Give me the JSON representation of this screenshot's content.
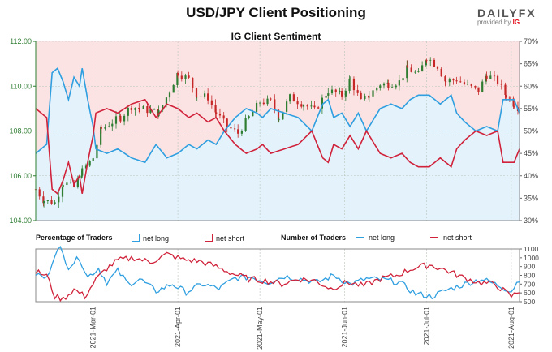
{
  "header": {
    "title": "USD/JPY Client Positioning",
    "subtitle": "IG Client Sentiment",
    "logo_main": "DAILY",
    "logo_fx": "FX",
    "logo_sub": "provided by",
    "logo_ig": "IG"
  },
  "legend": {
    "pct_title": "Percentage of Traders",
    "pct_long": "net long",
    "pct_short": "net short",
    "num_title": "Number of Traders",
    "num_long": "net long",
    "num_short": "net short"
  },
  "colors": {
    "long": "#2f9fe0",
    "short": "#d0223a",
    "long_fill": "#e4f2fc",
    "short_fill": "#fce3e3",
    "axis_green": "#2e7d32",
    "candle_up": "#2e7d32",
    "candle_down": "#c62828"
  },
  "chart_data": [
    {
      "type": "candlestick",
      "title": "IG Client Sentiment",
      "x_range": [
        "2021-02-08",
        "2021-08-04"
      ],
      "x_ticks": [
        "2021-Mar-01",
        "2021-Apr-01",
        "2021-May-01",
        "2021-Jun-01",
        "2021-Jul-01",
        "2021-Aug-01"
      ],
      "y_left": {
        "ticks": [
          "104.00",
          "106.00",
          "108.00",
          "110.00",
          "112.00"
        ],
        "range": [
          104,
          112
        ]
      },
      "y_right": {
        "ticks": [
          "30%",
          "35%",
          "40%",
          "45%",
          "50%",
          "55%",
          "60%",
          "65%",
          "70%"
        ],
        "range": [
          30,
          70
        ]
      },
      "reference_line_pct": 50,
      "price_close_anchors": [
        [
          "2021-02-08",
          105.4
        ],
        [
          "2021-02-11",
          104.9
        ],
        [
          "2021-02-15",
          104.8
        ],
        [
          "2021-02-18",
          105.7
        ],
        [
          "2021-02-22",
          105.5
        ],
        [
          "2021-02-25",
          106.2
        ],
        [
          "2021-03-01",
          106.8
        ],
        [
          "2021-03-04",
          108.1
        ],
        [
          "2021-03-08",
          108.4
        ],
        [
          "2021-03-11",
          108.6
        ],
        [
          "2021-03-15",
          109.1
        ],
        [
          "2021-03-18",
          109.0
        ],
        [
          "2021-03-22",
          108.9
        ],
        [
          "2021-03-25",
          108.8
        ],
        [
          "2021-03-29",
          109.8
        ],
        [
          "2021-04-01",
          110.6
        ],
        [
          "2021-04-05",
          110.3
        ],
        [
          "2021-04-08",
          109.6
        ],
        [
          "2021-04-12",
          109.5
        ],
        [
          "2021-04-15",
          108.8
        ],
        [
          "2021-04-19",
          108.2
        ],
        [
          "2021-04-23",
          107.9
        ],
        [
          "2021-04-27",
          108.6
        ],
        [
          "2021-05-01",
          109.3
        ],
        [
          "2021-05-05",
          109.3
        ],
        [
          "2021-05-08",
          108.6
        ],
        [
          "2021-05-12",
          109.5
        ],
        [
          "2021-05-17",
          109.2
        ],
        [
          "2021-05-21",
          108.9
        ],
        [
          "2021-05-26",
          109.8
        ],
        [
          "2021-05-31",
          109.6
        ],
        [
          "2021-06-03",
          110.3
        ],
        [
          "2021-06-07",
          109.3
        ],
        [
          "2021-06-10",
          109.6
        ],
        [
          "2021-06-14",
          110.1
        ],
        [
          "2021-06-17",
          110.1
        ],
        [
          "2021-06-21",
          110.2
        ],
        [
          "2021-06-24",
          110.8
        ],
        [
          "2021-06-28",
          110.5
        ],
        [
          "2021-07-01",
          111.3
        ],
        [
          "2021-07-05",
          110.9
        ],
        [
          "2021-07-08",
          110.2
        ],
        [
          "2021-07-12",
          110.3
        ],
        [
          "2021-07-16",
          110.0
        ],
        [
          "2021-07-20",
          109.8
        ],
        [
          "2021-07-23",
          110.5
        ],
        [
          "2021-07-27",
          110.2
        ],
        [
          "2021-07-30",
          109.6
        ],
        [
          "2021-08-02",
          109.2
        ],
        [
          "2021-08-04",
          109.0
        ]
      ],
      "series": [
        {
          "name": "net long",
          "unit": "%",
          "anchors": [
            [
              "2021-02-08",
              45
            ],
            [
              "2021-02-12",
              47
            ],
            [
              "2021-02-14",
              63
            ],
            [
              "2021-02-16",
              64
            ],
            [
              "2021-02-18",
              61
            ],
            [
              "2021-02-20",
              57
            ],
            [
              "2021-02-22",
              62
            ],
            [
              "2021-02-24",
              60
            ],
            [
              "2021-02-25",
              64
            ],
            [
              "2021-02-27",
              57
            ],
            [
              "2021-03-01",
              51
            ],
            [
              "2021-03-02",
              46
            ],
            [
              "2021-03-06",
              45
            ],
            [
              "2021-03-10",
              46
            ],
            [
              "2021-03-15",
              44
            ],
            [
              "2021-03-20",
              43
            ],
            [
              "2021-03-24",
              47
            ],
            [
              "2021-03-28",
              44
            ],
            [
              "2021-04-01",
              45
            ],
            [
              "2021-04-05",
              47
            ],
            [
              "2021-04-08",
              46
            ],
            [
              "2021-04-12",
              48
            ],
            [
              "2021-04-15",
              47
            ],
            [
              "2021-04-18",
              50
            ],
            [
              "2021-04-22",
              53
            ],
            [
              "2021-04-26",
              55
            ],
            [
              "2021-04-30",
              54
            ],
            [
              "2021-05-02",
              53
            ],
            [
              "2021-05-05",
              55
            ],
            [
              "2021-05-10",
              54
            ],
            [
              "2021-05-15",
              53
            ],
            [
              "2021-05-20",
              50
            ],
            [
              "2021-05-24",
              56
            ],
            [
              "2021-05-26",
              57
            ],
            [
              "2021-05-28",
              53
            ],
            [
              "2021-05-31",
              54
            ],
            [
              "2021-06-03",
              51
            ],
            [
              "2021-06-06",
              54
            ],
            [
              "2021-06-09",
              50
            ],
            [
              "2021-06-14",
              55
            ],
            [
              "2021-06-18",
              56
            ],
            [
              "2021-06-22",
              55
            ],
            [
              "2021-06-25",
              57
            ],
            [
              "2021-06-28",
              58
            ],
            [
              "2021-07-02",
              58
            ],
            [
              "2021-07-06",
              56
            ],
            [
              "2021-07-10",
              58
            ],
            [
              "2021-07-12",
              54
            ],
            [
              "2021-07-15",
              52
            ],
            [
              "2021-07-19",
              50
            ],
            [
              "2021-07-23",
              51
            ],
            [
              "2021-07-27",
              50
            ],
            [
              "2021-07-29",
              57
            ],
            [
              "2021-08-02",
              57
            ],
            [
              "2021-08-04",
              54
            ]
          ]
        },
        {
          "name": "net short",
          "unit": "%",
          "anchors": [
            [
              "2021-02-08",
              55
            ],
            [
              "2021-02-12",
              53
            ],
            [
              "2021-02-14",
              37
            ],
            [
              "2021-02-16",
              36
            ],
            [
              "2021-02-18",
              39
            ],
            [
              "2021-02-20",
              43
            ],
            [
              "2021-02-22",
              38
            ],
            [
              "2021-02-24",
              40
            ],
            [
              "2021-02-25",
              36
            ],
            [
              "2021-02-27",
              43
            ],
            [
              "2021-03-01",
              49
            ],
            [
              "2021-03-02",
              54
            ],
            [
              "2021-03-06",
              55
            ],
            [
              "2021-03-10",
              54
            ],
            [
              "2021-03-15",
              56
            ],
            [
              "2021-03-20",
              57
            ],
            [
              "2021-03-24",
              53
            ],
            [
              "2021-03-28",
              56
            ],
            [
              "2021-04-01",
              55
            ],
            [
              "2021-04-05",
              53
            ],
            [
              "2021-04-08",
              54
            ],
            [
              "2021-04-12",
              52
            ],
            [
              "2021-04-15",
              53
            ],
            [
              "2021-04-18",
              50
            ],
            [
              "2021-04-22",
              47
            ],
            [
              "2021-04-26",
              45
            ],
            [
              "2021-04-30",
              46
            ],
            [
              "2021-05-02",
              47
            ],
            [
              "2021-05-05",
              45
            ],
            [
              "2021-05-10",
              46
            ],
            [
              "2021-05-15",
              47
            ],
            [
              "2021-05-20",
              50
            ],
            [
              "2021-05-24",
              44
            ],
            [
              "2021-05-26",
              43
            ],
            [
              "2021-05-28",
              47
            ],
            [
              "2021-05-31",
              46
            ],
            [
              "2021-06-03",
              49
            ],
            [
              "2021-06-06",
              46
            ],
            [
              "2021-06-09",
              50
            ],
            [
              "2021-06-14",
              45
            ],
            [
              "2021-06-18",
              44
            ],
            [
              "2021-06-22",
              45
            ],
            [
              "2021-06-25",
              43
            ],
            [
              "2021-06-28",
              42
            ],
            [
              "2021-07-02",
              42
            ],
            [
              "2021-07-06",
              44
            ],
            [
              "2021-07-10",
              42
            ],
            [
              "2021-07-12",
              46
            ],
            [
              "2021-07-15",
              48
            ],
            [
              "2021-07-19",
              50
            ],
            [
              "2021-07-23",
              49
            ],
            [
              "2021-07-27",
              50
            ],
            [
              "2021-07-29",
              43
            ],
            [
              "2021-08-02",
              43
            ],
            [
              "2021-08-04",
              46
            ]
          ]
        }
      ]
    },
    {
      "type": "line",
      "title": "Number of Traders",
      "x_range": [
        "2021-02-08",
        "2021-08-04"
      ],
      "y_right": {
        "ticks": [
          "500",
          "600",
          "700",
          "800",
          "900",
          "1000",
          "1100"
        ],
        "range": [
          500,
          1100
        ]
      },
      "series": [
        {
          "name": "net long",
          "anchors": [
            [
              "2021-02-08",
              820
            ],
            [
              "2021-02-12",
              760
            ],
            [
              "2021-02-15",
              1050
            ],
            [
              "2021-02-17",
              1100
            ],
            [
              "2021-02-20",
              900
            ],
            [
              "2021-02-24",
              1000
            ],
            [
              "2021-02-27",
              780
            ],
            [
              "2021-03-03",
              880
            ],
            [
              "2021-03-06",
              720
            ],
            [
              "2021-03-10",
              850
            ],
            [
              "2021-03-14",
              700
            ],
            [
              "2021-03-18",
              760
            ],
            [
              "2021-03-24",
              620
            ],
            [
              "2021-03-30",
              700
            ],
            [
              "2021-04-04",
              610
            ],
            [
              "2021-04-10",
              700
            ],
            [
              "2021-04-16",
              650
            ],
            [
              "2021-04-22",
              770
            ],
            [
              "2021-04-28",
              780
            ],
            [
              "2021-05-04",
              720
            ],
            [
              "2021-05-10",
              790
            ],
            [
              "2021-05-16",
              760
            ],
            [
              "2021-05-22",
              720
            ],
            [
              "2021-05-28",
              800
            ],
            [
              "2021-06-03",
              700
            ],
            [
              "2021-06-09",
              760
            ],
            [
              "2021-06-15",
              750
            ],
            [
              "2021-06-21",
              720
            ],
            [
              "2021-06-27",
              590
            ],
            [
              "2021-07-03",
              560
            ],
            [
              "2021-07-09",
              640
            ],
            [
              "2021-07-15",
              700
            ],
            [
              "2021-07-21",
              760
            ],
            [
              "2021-07-27",
              690
            ],
            [
              "2021-08-01",
              620
            ],
            [
              "2021-08-04",
              760
            ]
          ]
        },
        {
          "name": "net short",
          "anchors": [
            [
              "2021-02-08",
              840
            ],
            [
              "2021-02-12",
              800
            ],
            [
              "2021-02-15",
              560
            ],
            [
              "2021-02-18",
              530
            ],
            [
              "2021-02-22",
              640
            ],
            [
              "2021-02-26",
              560
            ],
            [
              "2021-03-02",
              750
            ],
            [
              "2021-03-06",
              880
            ],
            [
              "2021-03-10",
              970
            ],
            [
              "2021-03-16",
              1000
            ],
            [
              "2021-03-22",
              950
            ],
            [
              "2021-03-28",
              1040
            ],
            [
              "2021-04-03",
              980
            ],
            [
              "2021-04-09",
              960
            ],
            [
              "2021-04-15",
              900
            ],
            [
              "2021-04-21",
              820
            ],
            [
              "2021-04-27",
              760
            ],
            [
              "2021-05-03",
              740
            ],
            [
              "2021-05-09",
              700
            ],
            [
              "2021-05-15",
              760
            ],
            [
              "2021-05-21",
              740
            ],
            [
              "2021-05-27",
              650
            ],
            [
              "2021-06-02",
              720
            ],
            [
              "2021-06-08",
              680
            ],
            [
              "2021-06-14",
              760
            ],
            [
              "2021-06-20",
              800
            ],
            [
              "2021-06-26",
              880
            ],
            [
              "2021-07-02",
              920
            ],
            [
              "2021-07-08",
              860
            ],
            [
              "2021-07-14",
              780
            ],
            [
              "2021-07-20",
              720
            ],
            [
              "2021-07-26",
              700
            ],
            [
              "2021-08-01",
              560
            ],
            [
              "2021-08-04",
              620
            ]
          ]
        }
      ]
    }
  ]
}
